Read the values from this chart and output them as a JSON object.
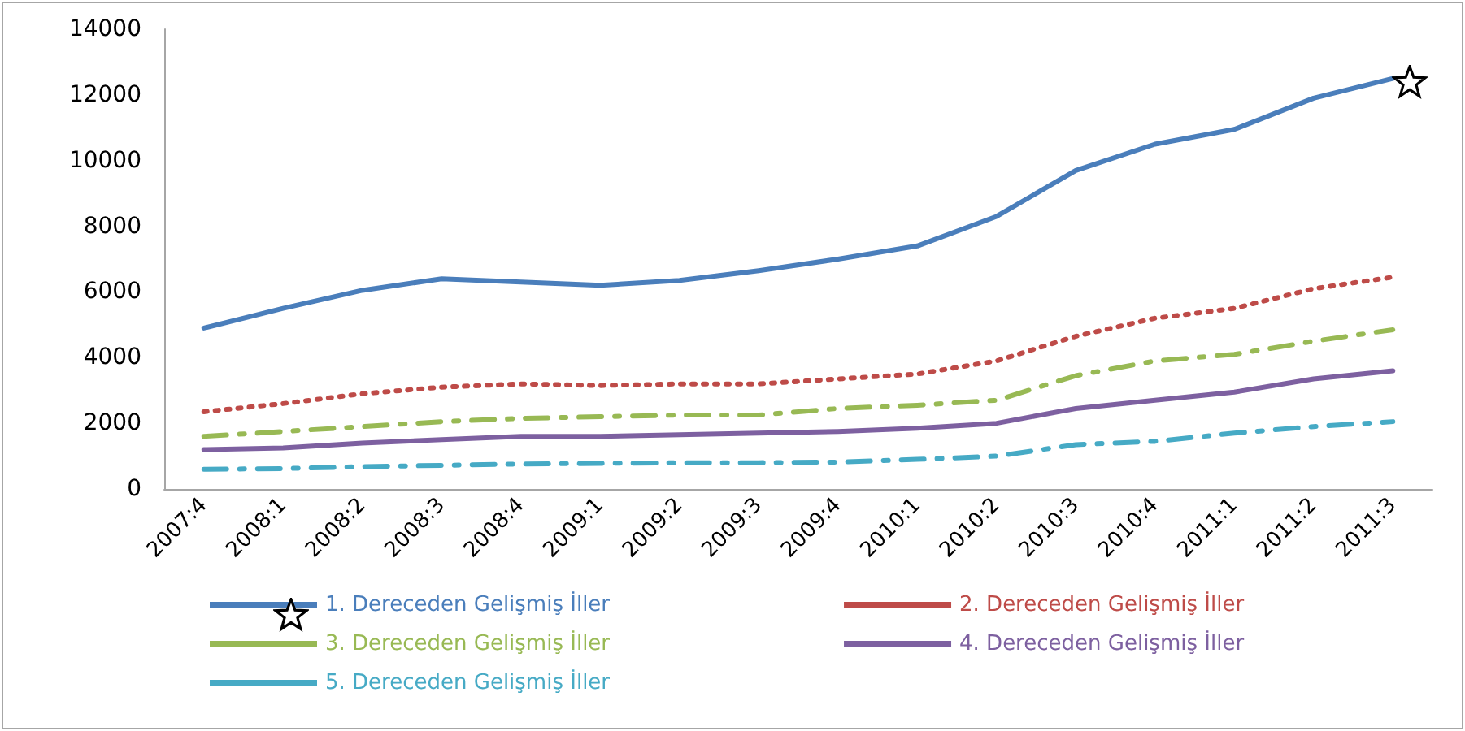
{
  "chart_data": {
    "type": "line",
    "categories": [
      "2007:4",
      "2008:1",
      "2008:2",
      "2008:3",
      "2008:4",
      "2009:1",
      "2009:2",
      "2009:3",
      "2009:4",
      "2010:1",
      "2010:2",
      "2010:3",
      "2010:4",
      "2011:1",
      "2011:2",
      "2011:3"
    ],
    "ylim": [
      0,
      14000
    ],
    "yticks": [
      0,
      2000,
      4000,
      6000,
      8000,
      10000,
      12000,
      14000
    ],
    "grid": false,
    "legend": "bottom",
    "marker": "none",
    "series": [
      {
        "name": "1. Dereceden Gelişmiş İller",
        "color": "#4a7ebb",
        "line_style": "solid",
        "values": [
          4900,
          5500,
          6050,
          6400,
          6300,
          6200,
          6350,
          6650,
          7000,
          7400,
          8300,
          9700,
          10500,
          10950,
          11900,
          12500
        ]
      },
      {
        "name": "2. Dereceden Gelişmiş İller",
        "color": "#be4b48",
        "line_style": "dotted",
        "values": [
          2350,
          2600,
          2900,
          3100,
          3200,
          3150,
          3200,
          3200,
          3350,
          3500,
          3900,
          4650,
          5200,
          5500,
          6100,
          6450
        ]
      },
      {
        "name": "3. Dereceden Gelişmiş İller",
        "color": "#98b954",
        "line_style": "dashed",
        "values": [
          1600,
          1750,
          1900,
          2050,
          2150,
          2200,
          2250,
          2250,
          2450,
          2550,
          2700,
          3450,
          3900,
          4100,
          4500,
          4850
        ]
      },
      {
        "name": "4. Dereceden Gelişmiş İller",
        "color": "#7d60a0",
        "line_style": "solid",
        "values": [
          1200,
          1250,
          1400,
          1500,
          1600,
          1600,
          1650,
          1700,
          1750,
          1850,
          2000,
          2450,
          2700,
          2950,
          3350,
          3600
        ]
      },
      {
        "name": "5. Dereceden Gelişmiş İller",
        "color": "#46aac5",
        "line_style": "dashed",
        "values": [
          600,
          620,
          680,
          720,
          760,
          780,
          800,
          800,
          820,
          900,
          1000,
          1350,
          1450,
          1700,
          1900,
          2050
        ]
      }
    ]
  }
}
